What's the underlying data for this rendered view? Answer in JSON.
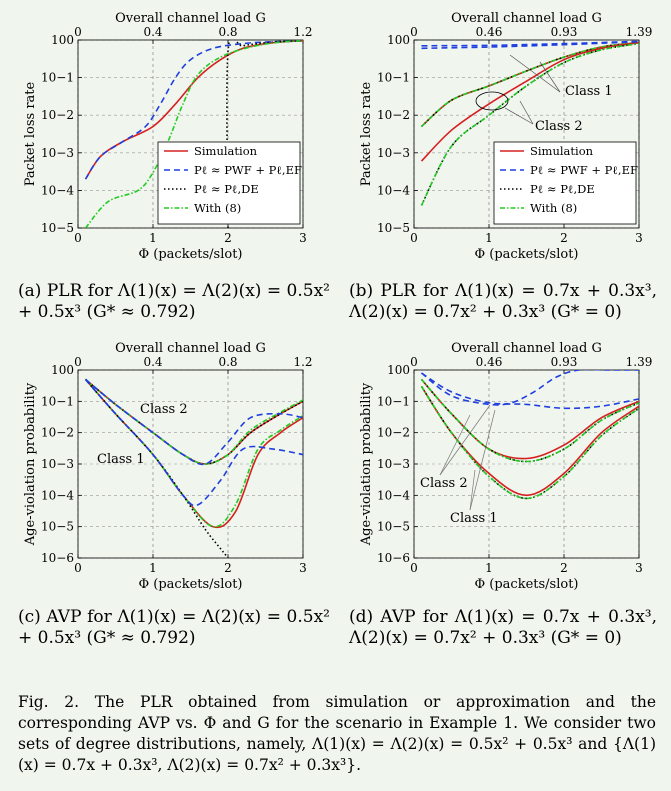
{
  "colors": {
    "background": "#f0f5ee",
    "simulation": "#d62020",
    "wf_ef": "#1f3fe0",
    "de": "#000000",
    "with8": "#22cc22"
  },
  "chart_data": [
    {
      "id": "a",
      "type": "line",
      "xlabel": "Φ (packets/slot)",
      "ylabel": "Packet loss rate",
      "top_axis_label": "Overall channel load G",
      "top_ticks": [
        "0",
        "0.4",
        "0.8",
        "1.2"
      ],
      "x_ticks": [
        "0",
        "1",
        "2",
        "3"
      ],
      "y_ticks": [
        "10−5",
        "10−4",
        "10−3",
        "10−2",
        "10−1",
        "100"
      ],
      "xlim": [
        0,
        3
      ],
      "ylim_log10": [
        -5,
        0
      ],
      "log_y": true,
      "grid": true,
      "legend": "bottom-right",
      "legend_entries": [
        "Simulation",
        "Pℓ ≈ PWF + Pℓ,EF",
        "Pℓ ≈ Pℓ,DE",
        "With (8)"
      ],
      "caption": "(a) PLR for Λ(1)(x) = Λ(2)(x) = 0.5x² + 0.5x³ (G* ≈ 0.792)",
      "series": [
        {
          "name": "Simulation",
          "style": "sim",
          "x": [
            0.1,
            0.3,
            0.6,
            1.0,
            1.3,
            1.6,
            1.9,
            2.2,
            2.6,
            3.0
          ],
          "y": [
            0.0002,
            0.0008,
            0.002,
            0.005,
            0.02,
            0.1,
            0.3,
            0.6,
            0.85,
            0.95
          ]
        },
        {
          "name": "Pℓ ≈ PWF + Pℓ,EF",
          "style": "wf",
          "x": [
            0.1,
            0.3,
            0.6,
            0.9,
            1.1,
            1.3,
            1.5,
            1.8,
            2.2,
            2.6,
            3.0
          ],
          "y": [
            0.0002,
            0.0008,
            0.002,
            0.005,
            0.02,
            0.1,
            0.3,
            0.6,
            0.8,
            0.9,
            0.95
          ]
        },
        {
          "name": "Pℓ ≈ Pℓ,DE",
          "style": "de",
          "x": [
            2.0,
            2.0,
            2.2,
            2.6,
            3.0
          ],
          "y": [
            1e-05,
            0.5,
            0.7,
            0.88,
            0.95
          ]
        },
        {
          "name": "With (8)",
          "style": "w8",
          "x": [
            0.1,
            0.4,
            0.8,
            1.0,
            1.2,
            1.4,
            1.6,
            1.9,
            2.3,
            2.7,
            3.0
          ],
          "y": [
            1e-05,
            5e-05,
            0.0001,
            0.0003,
            0.002,
            0.02,
            0.12,
            0.35,
            0.65,
            0.88,
            0.95
          ]
        }
      ]
    },
    {
      "id": "b",
      "type": "line",
      "xlabel": "Φ (packets/slot)",
      "ylabel": "Packet loss rate",
      "top_axis_label": "Overall channel load G",
      "top_ticks": [
        "0",
        "0.46",
        "0.93",
        "1.39"
      ],
      "x_ticks": [
        "0",
        "1",
        "2",
        "3"
      ],
      "y_ticks": [
        "10−5",
        "10−4",
        "10−3",
        "10−2",
        "10−1",
        "100"
      ],
      "xlim": [
        0,
        3
      ],
      "ylim_log10": [
        -5,
        0
      ],
      "log_y": true,
      "grid": true,
      "legend": "bottom-right",
      "legend_entries": [
        "Simulation",
        "Pℓ ≈ PWF + Pℓ,EF",
        "Pℓ ≈ Pℓ,DE",
        "With (8)"
      ],
      "annotations": [
        "Class 1",
        "Class 2"
      ],
      "caption": "(b) PLR for Λ(1)(x) = 0.7x + 0.3x³, Λ(2)(x) = 0.7x² + 0.3x³ (G* = 0)",
      "series": [
        {
          "name": "Class 1 Simulation",
          "style": "sim",
          "x": [
            0.1,
            0.5,
            1.0,
            1.5,
            2.0,
            2.5,
            3.0
          ],
          "y": [
            0.005,
            0.025,
            0.06,
            0.15,
            0.35,
            0.65,
            0.85
          ]
        },
        {
          "name": "Class 1 DE",
          "style": "de",
          "x": [
            0.1,
            0.5,
            1.0,
            1.5,
            2.0,
            2.5,
            3.0
          ],
          "y": [
            0.005,
            0.025,
            0.06,
            0.15,
            0.35,
            0.65,
            0.85
          ]
        },
        {
          "name": "Class 1 With (8)",
          "style": "w8",
          "x": [
            0.1,
            0.5,
            1.0,
            1.5,
            2.0,
            2.5,
            3.0
          ],
          "y": [
            0.005,
            0.025,
            0.06,
            0.15,
            0.35,
            0.65,
            0.85
          ]
        },
        {
          "name": "Class 2 Simulation",
          "style": "sim",
          "x": [
            0.1,
            0.5,
            1.0,
            1.5,
            2.0,
            2.5,
            3.0
          ],
          "y": [
            0.0006,
            0.004,
            0.02,
            0.08,
            0.3,
            0.6,
            0.85
          ]
        },
        {
          "name": "Class 2 DE",
          "style": "de",
          "x": [
            0.1,
            0.5,
            1.0,
            1.5,
            2.0,
            2.5,
            3.0
          ],
          "y": [
            4e-05,
            0.0015,
            0.01,
            0.06,
            0.25,
            0.55,
            0.8
          ]
        },
        {
          "name": "Class 2 With (8)",
          "style": "w8",
          "x": [
            0.1,
            0.5,
            1.0,
            1.5,
            2.0,
            2.5,
            3.0
          ],
          "y": [
            4e-05,
            0.0015,
            0.01,
            0.06,
            0.25,
            0.55,
            0.8
          ]
        },
        {
          "name": "Class 1 WF+EF",
          "style": "wf",
          "x": [
            0.1,
            1.0,
            2.0,
            3.0
          ],
          "y": [
            0.6,
            0.65,
            0.75,
            0.9
          ]
        },
        {
          "name": "Class 2 WF+EF",
          "style": "wf",
          "x": [
            0.1,
            1.0,
            2.0,
            3.0
          ],
          "y": [
            0.7,
            0.72,
            0.8,
            0.92
          ]
        }
      ]
    },
    {
      "id": "c",
      "type": "line",
      "xlabel": "Φ (packets/slot)",
      "ylabel": "Age-violation probability",
      "top_axis_label": "Overall channel load G",
      "top_ticks": [
        "0",
        "0.4",
        "0.8",
        "1.2"
      ],
      "x_ticks": [
        "0",
        "1",
        "2",
        "3"
      ],
      "y_ticks": [
        "10−6",
        "10−5",
        "10−4",
        "10−3",
        "10−2",
        "10−1",
        "100"
      ],
      "xlim": [
        0,
        3
      ],
      "ylim_log10": [
        -6,
        0
      ],
      "log_y": true,
      "grid": true,
      "annotations": [
        "Class 2",
        "Class 1"
      ],
      "caption": "(c) AVP for Λ(1)(x) = Λ(2)(x) = 0.5x² + 0.5x³ (G* ≈ 0.792)",
      "series": [
        {
          "name": "Class 2 Simulation",
          "style": "sim",
          "x": [
            0.1,
            0.5,
            1.0,
            1.4,
            1.7,
            2.0,
            2.3,
            2.7,
            3.0
          ],
          "y": [
            0.5,
            0.08,
            0.01,
            0.002,
            0.001,
            0.002,
            0.01,
            0.04,
            0.1
          ]
        },
        {
          "name": "Class 2 DE",
          "style": "de",
          "x": [
            0.1,
            0.5,
            1.0,
            1.4,
            1.7,
            2.0,
            2.3,
            2.7,
            3.0
          ],
          "y": [
            0.5,
            0.08,
            0.01,
            0.002,
            0.001,
            0.002,
            0.01,
            0.04,
            0.1
          ]
        },
        {
          "name": "Class 2 With (8)",
          "style": "w8",
          "x": [
            0.1,
            0.5,
            1.0,
            1.4,
            1.7,
            2.0,
            2.3,
            2.7,
            3.0
          ],
          "y": [
            0.5,
            0.08,
            0.01,
            0.002,
            0.001,
            0.002,
            0.012,
            0.045,
            0.11
          ]
        },
        {
          "name": "Class 1 Simulation",
          "style": "sim",
          "x": [
            0.1,
            0.5,
            1.0,
            1.4,
            1.8,
            2.1,
            2.4,
            2.7,
            3.0
          ],
          "y": [
            0.5,
            0.04,
            0.002,
            0.0001,
            1e-05,
            3e-05,
            0.002,
            0.01,
            0.03
          ]
        },
        {
          "name": "Class 1 With (8)",
          "style": "w8",
          "x": [
            0.1,
            0.5,
            1.0,
            1.4,
            1.8,
            2.1,
            2.4,
            2.7,
            3.0
          ],
          "y": [
            0.5,
            0.04,
            0.002,
            0.0001,
            1e-05,
            5e-05,
            0.003,
            0.012,
            0.035
          ]
        },
        {
          "name": "Class 1 DE",
          "style": "de",
          "x": [
            0.1,
            0.5,
            1.0,
            1.4,
            1.7,
            1.9,
            2.0
          ],
          "y": [
            0.5,
            0.04,
            0.002,
            0.0001,
            8e-06,
            2e-06,
            1e-06
          ]
        },
        {
          "name": "Class 2 WF+EF",
          "style": "wf",
          "x": [
            0.1,
            0.5,
            1.0,
            1.4,
            1.7,
            2.0,
            2.3,
            2.7,
            3.0
          ],
          "y": [
            0.5,
            0.08,
            0.01,
            0.002,
            0.001,
            0.005,
            0.03,
            0.04,
            0.03
          ]
        },
        {
          "name": "Class 1 WF+EF",
          "style": "wf",
          "x": [
            0.1,
            0.5,
            1.0,
            1.4,
            1.6,
            1.9,
            2.2,
            2.6,
            3.0
          ],
          "y": [
            0.5,
            0.04,
            0.002,
            0.0001,
            5e-05,
            0.0003,
            0.003,
            0.003,
            0.002
          ]
        }
      ]
    },
    {
      "id": "d",
      "type": "line",
      "xlabel": "Φ (packets/slot)",
      "ylabel": "Age-violation probability",
      "top_axis_label": "Overall channel load G",
      "top_ticks": [
        "0",
        "0.46",
        "0.93",
        "1.39"
      ],
      "x_ticks": [
        "0",
        "1",
        "2",
        "3"
      ],
      "y_ticks": [
        "10−6",
        "10−5",
        "10−4",
        "10−3",
        "10−2",
        "10−1",
        "100"
      ],
      "xlim": [
        0,
        3
      ],
      "ylim_log10": [
        -6,
        0
      ],
      "log_y": true,
      "grid": true,
      "annotations": [
        "Class 2",
        "Class 1"
      ],
      "caption": "(d) AVP for Λ(1)(x) = 0.7x + 0.3x³, Λ(2)(x) = 0.7x² + 0.3x³ (G* = 0)",
      "series": [
        {
          "name": "Class 2 Simulation",
          "style": "sim",
          "x": [
            0.1,
            0.5,
            1.0,
            1.5,
            2.0,
            2.5,
            3.0
          ],
          "y": [
            0.5,
            0.04,
            0.003,
            0.0015,
            0.004,
            0.03,
            0.1
          ]
        },
        {
          "name": "Class 2 DE",
          "style": "de",
          "x": [
            0.1,
            0.5,
            1.0,
            1.5,
            2.0,
            2.5,
            3.0
          ],
          "y": [
            0.5,
            0.04,
            0.003,
            0.0012,
            0.003,
            0.025,
            0.09
          ]
        },
        {
          "name": "Class 2 With (8)",
          "style": "w8",
          "x": [
            0.1,
            0.5,
            1.0,
            1.5,
            2.0,
            2.5,
            3.0
          ],
          "y": [
            0.5,
            0.04,
            0.003,
            0.0012,
            0.003,
            0.025,
            0.09
          ]
        },
        {
          "name": "Class 1 Simulation",
          "style": "sim",
          "x": [
            0.1,
            0.5,
            1.0,
            1.5,
            2.0,
            2.5,
            3.0
          ],
          "y": [
            0.3,
            0.01,
            0.0005,
            0.0001,
            0.0005,
            0.01,
            0.07
          ]
        },
        {
          "name": "Class 1 DE",
          "style": "de",
          "x": [
            0.1,
            0.5,
            1.0,
            1.5,
            2.0,
            2.5,
            3.0
          ],
          "y": [
            0.3,
            0.01,
            0.0004,
            8e-05,
            0.0004,
            0.008,
            0.06
          ]
        },
        {
          "name": "Class 1 With (8)",
          "style": "w8",
          "x": [
            0.1,
            0.5,
            1.0,
            1.5,
            2.0,
            2.5,
            3.0
          ],
          "y": [
            0.3,
            0.01,
            0.0004,
            8e-05,
            0.0004,
            0.008,
            0.06
          ]
        },
        {
          "name": "Class 2 WF+EF",
          "style": "wf",
          "x": [
            0.1,
            0.5,
            1.0,
            1.5,
            2.0,
            2.5,
            3.0
          ],
          "y": [
            0.8,
            0.2,
            0.09,
            0.08,
            0.06,
            0.07,
            0.12
          ]
        },
        {
          "name": "Class 1 WF+EF",
          "style": "wf",
          "x": [
            0.1,
            0.5,
            1.0,
            1.3,
            1.6,
            1.9,
            2.2,
            2.6,
            3.0
          ],
          "y": [
            0.8,
            0.15,
            0.08,
            0.09,
            0.2,
            0.6,
            1.0,
            1.0,
            1.0
          ]
        }
      ]
    }
  ],
  "figure_caption": "Fig. 2. The PLR obtained from simulation or approximation and the corresponding AVP vs. Φ and G for the scenario in Example 1. We consider two sets of degree distributions, namely, Λ(1)(x) = Λ(2)(x) = 0.5x² + 0.5x³ and {Λ(1)(x) = 0.7x + 0.3x³, Λ(2)(x) = 0.7x² + 0.3x³}."
}
